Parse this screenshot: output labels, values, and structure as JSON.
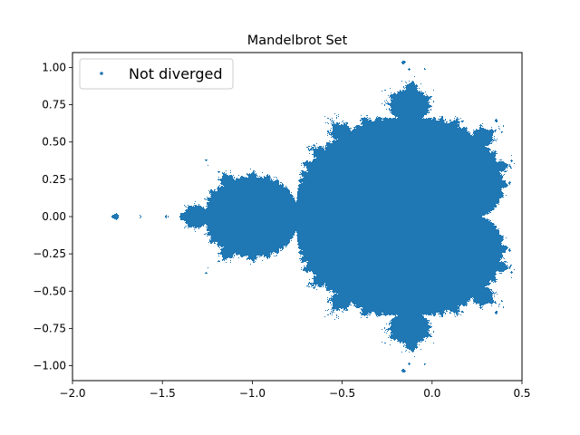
{
  "chart_data": {
    "type": "scatter",
    "title": "Mandelbrot Set",
    "xlabel": "",
    "ylabel": "",
    "xlim": [
      -2.0,
      0.5
    ],
    "ylim": [
      -1.1,
      1.1
    ],
    "xticks": [
      -2.0,
      -1.5,
      -1.0,
      -0.5,
      0.0,
      0.5
    ],
    "xtick_labels": [
      "−2.0",
      "−1.5",
      "−1.0",
      "−0.5",
      "0.0",
      "0.5"
    ],
    "yticks": [
      -1.0,
      -0.75,
      -0.5,
      -0.25,
      0.0,
      0.25,
      0.5,
      0.75,
      1.0
    ],
    "ytick_labels": [
      "−1.00",
      "−0.75",
      "−0.50",
      "−0.25",
      "0.00",
      "0.25",
      "0.50",
      "0.75",
      "1.00"
    ],
    "grid": false,
    "legend_placement": "top-left",
    "series": [
      {
        "name": "Not diverged",
        "color": "#1f77b4",
        "description_of_points": "points c in the complex plane whose iteration z -> z^2 + c did not diverge"
      }
    ]
  }
}
